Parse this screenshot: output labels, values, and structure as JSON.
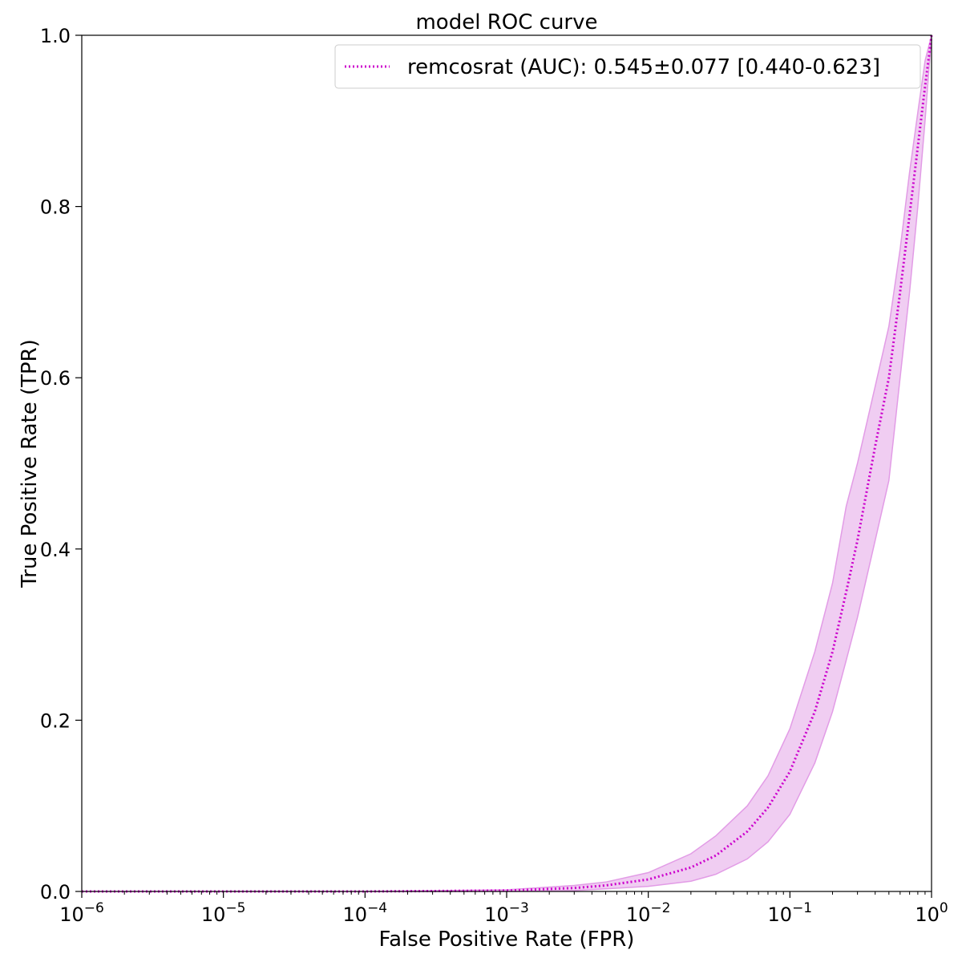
{
  "chart_data": {
    "type": "line",
    "title": "model ROC curve",
    "xlabel": "False Positive Rate (FPR)",
    "ylabel": "True Positive Rate (TPR)",
    "xscale": "log",
    "xlim": [
      1e-06,
      1
    ],
    "ylim": [
      0,
      1
    ],
    "grid": false,
    "legend_position": "top-right",
    "x_ticks": [
      {
        "base": "10",
        "exp": "−6",
        "value": 1e-06
      },
      {
        "base": "10",
        "exp": "−5",
        "value": 1e-05
      },
      {
        "base": "10",
        "exp": "−4",
        "value": 0.0001
      },
      {
        "base": "10",
        "exp": "−3",
        "value": 0.001
      },
      {
        "base": "10",
        "exp": "−2",
        "value": 0.01
      },
      {
        "base": "10",
        "exp": "−1",
        "value": 0.1
      },
      {
        "base": "10",
        "exp": "0",
        "value": 1
      }
    ],
    "y_ticks": [
      {
        "label": "0.0",
        "value": 0.0
      },
      {
        "label": "0.2",
        "value": 0.2
      },
      {
        "label": "0.4",
        "value": 0.4
      },
      {
        "label": "0.6",
        "value": 0.6
      },
      {
        "label": "0.8",
        "value": 0.8
      },
      {
        "label": "1.0",
        "value": 1.0
      }
    ],
    "series": [
      {
        "name": "remcosrat (AUC): 0.545±0.077 [0.440-0.623]",
        "color": "#cc00cc",
        "band_color": "#e29ce6",
        "line_style": "dotted",
        "x": [
          1e-06,
          0.0001,
          0.001,
          0.003,
          0.005,
          0.01,
          0.02,
          0.03,
          0.05,
          0.07,
          0.1,
          0.15,
          0.2,
          0.25,
          0.3,
          0.4,
          0.5,
          0.6,
          0.7,
          0.8,
          0.9,
          1.0
        ],
        "y": [
          0.0,
          0.0,
          0.001,
          0.004,
          0.007,
          0.014,
          0.028,
          0.042,
          0.07,
          0.098,
          0.14,
          0.21,
          0.28,
          0.35,
          0.41,
          0.52,
          0.6,
          0.7,
          0.79,
          0.87,
          0.94,
          1.0
        ],
        "lower": [
          0.0,
          0.0,
          0.0,
          0.001,
          0.003,
          0.006,
          0.012,
          0.02,
          0.038,
          0.058,
          0.09,
          0.15,
          0.21,
          0.27,
          0.32,
          0.41,
          0.48,
          0.6,
          0.7,
          0.8,
          0.9,
          1.0
        ],
        "upper": [
          0.0,
          0.0,
          0.002,
          0.007,
          0.011,
          0.022,
          0.044,
          0.065,
          0.1,
          0.135,
          0.19,
          0.28,
          0.36,
          0.45,
          0.5,
          0.59,
          0.66,
          0.75,
          0.84,
          0.91,
          0.97,
          1.0
        ]
      }
    ]
  }
}
